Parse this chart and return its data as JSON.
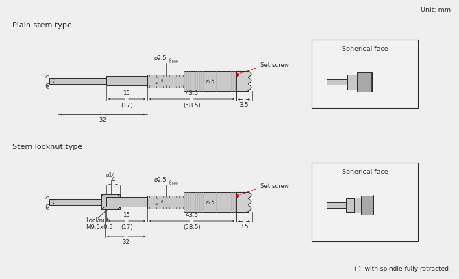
{
  "bg_color": "#efefef",
  "unit_text": "Unit: mm",
  "title1": "Plain stem type",
  "title2": "Stem locknut type",
  "footer": "( ): with spindle fully retracted",
  "part_color": "#c8c8c8",
  "part_color_dark": "#a8a8a8",
  "line_color": "#2a2a2a",
  "red_color": "#cc0000",
  "white": "#ffffff"
}
